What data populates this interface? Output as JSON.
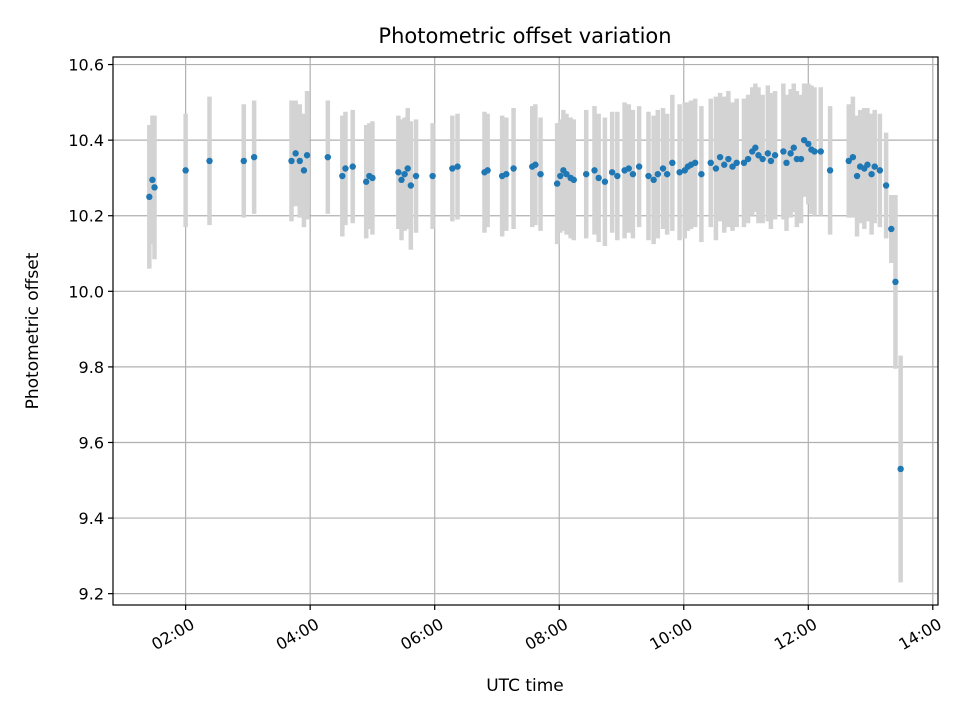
{
  "chart_data": {
    "type": "scatter",
    "title": "Photometric offset variation",
    "xlabel": "UTC time",
    "ylabel": "Photometric offset",
    "xlim": [
      "00:50",
      "14:05"
    ],
    "ylim": [
      9.17,
      10.62
    ],
    "xticks": [
      "02:00",
      "04:00",
      "06:00",
      "08:00",
      "10:00",
      "12:00",
      "14:00"
    ],
    "yticks": [
      9.2,
      9.4,
      9.6,
      9.8,
      10.0,
      10.2,
      10.4,
      10.6
    ],
    "grid": true,
    "marker_color": "#1f77b4",
    "errorbar_color": "#d3d3d3",
    "series": [
      {
        "x_time": [
          "01:25",
          "01:28",
          "01:30",
          "02:00",
          "02:23",
          "02:56",
          "03:06",
          "03:42",
          "03:46",
          "03:50",
          "03:54",
          "03:57",
          "04:17",
          "04:31",
          "04:34",
          "04:41",
          "04:54",
          "04:57",
          "05:00",
          "05:25",
          "05:28",
          "05:31",
          "05:34",
          "05:37",
          "05:42",
          "05:58",
          "06:17",
          "06:22",
          "06:48",
          "06:51",
          "07:05",
          "07:09",
          "07:16",
          "07:34",
          "07:37",
          "07:42",
          "07:58",
          "08:01",
          "08:04",
          "08:07",
          "08:11",
          "08:14",
          "08:26",
          "08:34",
          "08:38",
          "08:44",
          "08:51",
          "08:56",
          "09:03",
          "09:07",
          "09:11",
          "09:17",
          "09:26",
          "09:31",
          "09:35",
          "09:40",
          "09:44",
          "09:49",
          "09:56",
          "10:01",
          "10:04",
          "10:07",
          "10:11",
          "10:17",
          "10:26",
          "10:31",
          "10:35",
          "10:39",
          "10:43",
          "10:47",
          "10:51",
          "10:58",
          "11:02",
          "11:06",
          "11:09",
          "11:12",
          "11:16",
          "11:21",
          "11:24",
          "11:28",
          "11:36",
          "11:39",
          "11:43",
          "11:46",
          "11:49",
          "11:53",
          "11:56",
          "12:00",
          "12:03",
          "12:06",
          "12:12",
          "12:21",
          "12:39",
          "12:43",
          "12:47",
          "12:50",
          "12:54",
          "12:57",
          "13:01",
          "13:04",
          "13:09",
          "13:15",
          "13:20",
          "13:24",
          "13:29"
        ],
        "y": [
          10.25,
          10.295,
          10.275,
          10.32,
          10.345,
          10.345,
          10.355,
          10.345,
          10.365,
          10.345,
          10.32,
          10.36,
          10.355,
          10.305,
          10.325,
          10.33,
          10.29,
          10.305,
          10.3,
          10.315,
          10.295,
          10.31,
          10.325,
          10.28,
          10.305,
          10.305,
          10.325,
          10.33,
          10.315,
          10.32,
          10.305,
          10.31,
          10.325,
          10.33,
          10.335,
          10.31,
          10.285,
          10.305,
          10.32,
          10.31,
          10.3,
          10.295,
          10.31,
          10.32,
          10.3,
          10.29,
          10.315,
          10.305,
          10.32,
          10.325,
          10.31,
          10.33,
          10.305,
          10.295,
          10.31,
          10.325,
          10.31,
          10.34,
          10.315,
          10.32,
          10.33,
          10.335,
          10.34,
          10.31,
          10.34,
          10.325,
          10.355,
          10.335,
          10.35,
          10.33,
          10.34,
          10.34,
          10.35,
          10.37,
          10.38,
          10.36,
          10.35,
          10.365,
          10.345,
          10.36,
          10.37,
          10.34,
          10.365,
          10.38,
          10.35,
          10.35,
          10.4,
          10.39,
          10.375,
          10.37,
          10.37,
          10.32,
          10.345,
          10.355,
          10.305,
          10.33,
          10.325,
          10.335,
          10.31,
          10.33,
          10.32,
          10.28,
          10.165,
          10.025,
          9.53
        ],
        "err": [
          0.19,
          0.17,
          0.19,
          0.15,
          0.17,
          0.15,
          0.15,
          0.16,
          0.14,
          0.15,
          0.15,
          0.17,
          0.15,
          0.16,
          0.15,
          0.15,
          0.15,
          0.14,
          0.15,
          0.15,
          0.16,
          0.15,
          0.16,
          0.17,
          0.15,
          0.14,
          0.14,
          0.14,
          0.16,
          0.15,
          0.16,
          0.15,
          0.16,
          0.16,
          0.16,
          0.15,
          0.16,
          0.15,
          0.16,
          0.16,
          0.16,
          0.16,
          0.17,
          0.17,
          0.17,
          0.17,
          0.16,
          0.17,
          0.18,
          0.17,
          0.17,
          0.16,
          0.17,
          0.17,
          0.17,
          0.16,
          0.16,
          0.18,
          0.18,
          0.18,
          0.17,
          0.17,
          0.17,
          0.18,
          0.17,
          0.19,
          0.17,
          0.18,
          0.18,
          0.17,
          0.17,
          0.17,
          0.17,
          0.17,
          0.17,
          0.18,
          0.17,
          0.18,
          0.18,
          0.17,
          0.18,
          0.18,
          0.17,
          0.17,
          0.18,
          0.17,
          0.15,
          0.16,
          0.17,
          0.17,
          0.17,
          0.17,
          0.15,
          0.16,
          0.16,
          0.15,
          0.16,
          0.15,
          0.16,
          0.15,
          0.15,
          0.14,
          0.09,
          0.23,
          0.3
        ]
      }
    ]
  }
}
